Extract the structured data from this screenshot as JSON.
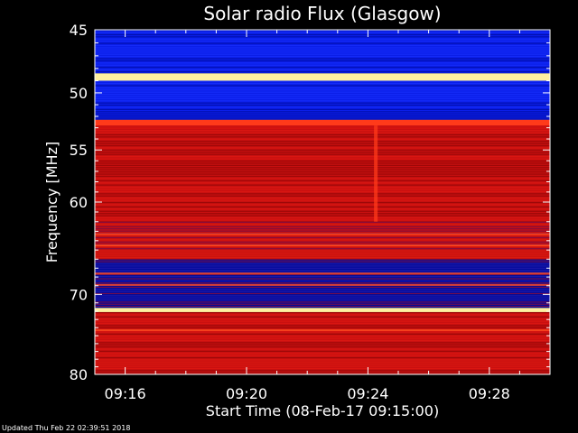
{
  "chart_data": {
    "type": "heatmap",
    "title": "Solar radio Flux (Glasgow)",
    "xlabel": "Start Time (08-Feb-17 09:15:00)",
    "ylabel": "Frequency [MHz]",
    "x_ticks": [
      "09:16",
      "09:20",
      "09:24",
      "09:28"
    ],
    "y_ticks": [
      45,
      50,
      55,
      60,
      70,
      80
    ],
    "xlim_minutes_after_start": [
      0,
      15
    ],
    "ylim_mhz": [
      45,
      80
    ],
    "y_scale": "log",
    "colormap": "blue-red-yellow",
    "bands": [
      {
        "from_mhz": 45.0,
        "to_mhz": 48.4,
        "level": "low"
      },
      {
        "from_mhz": 48.4,
        "to_mhz": 49.0,
        "level": "saturated"
      },
      {
        "from_mhz": 49.0,
        "to_mhz": 52.3,
        "level": "low"
      },
      {
        "from_mhz": 52.3,
        "to_mhz": 52.8,
        "level": "high"
      },
      {
        "from_mhz": 52.8,
        "to_mhz": 62.0,
        "level": "medium"
      },
      {
        "from_mhz": 62.0,
        "to_mhz": 66.0,
        "level": "mixed"
      },
      {
        "from_mhz": 66.0,
        "to_mhz": 71.6,
        "level": "mixed-low"
      },
      {
        "from_mhz": 71.6,
        "to_mhz": 72.1,
        "level": "saturated"
      },
      {
        "from_mhz": 72.1,
        "to_mhz": 80.0,
        "level": "medium"
      }
    ]
  },
  "colors": {
    "low": "#0a1ee8",
    "low_dark": "#000a9a",
    "medium": "#c81010",
    "medium_dark": "#8a0606",
    "high": "#ff3a1a",
    "saturated": "#fff0a0",
    "axis": "#ffffff"
  },
  "footer": "Updated Thu Feb 22 02:39:51 2018"
}
